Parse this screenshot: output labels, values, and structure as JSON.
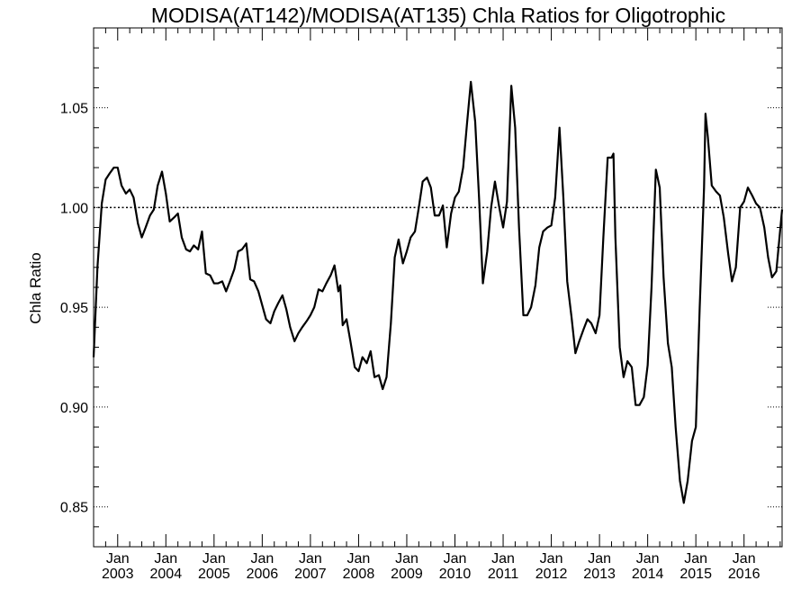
{
  "chart_data": {
    "type": "line",
    "title": "MODISA(AT142)/MODISA(AT135)  Chla Ratios for Oligotrophic",
    "xlabel": "",
    "ylabel": "Chla Ratio",
    "xlim": [
      2002.5,
      2016.79
    ],
    "ylim": [
      0.83,
      1.09
    ],
    "y_ticks": [
      0.85,
      0.9,
      0.95,
      1.0,
      1.05
    ],
    "y_tick_labels": [
      "0.85",
      "0.90",
      "0.95",
      "1.00",
      "1.05"
    ],
    "x_ticks": [
      {
        "x": 2003,
        "month": "Jan",
        "year": "2003"
      },
      {
        "x": 2004,
        "month": "Jan",
        "year": "2004"
      },
      {
        "x": 2005,
        "month": "Jan",
        "year": "2005"
      },
      {
        "x": 2006,
        "month": "Jan",
        "year": "2006"
      },
      {
        "x": 2007,
        "month": "Jan",
        "year": "2007"
      },
      {
        "x": 2008,
        "month": "Jan",
        "year": "2008"
      },
      {
        "x": 2009,
        "month": "Jan",
        "year": "2009"
      },
      {
        "x": 2010,
        "month": "Jan",
        "year": "2010"
      },
      {
        "x": 2011,
        "month": "Jan",
        "year": "2011"
      },
      {
        "x": 2012,
        "month": "Jan",
        "year": "2012"
      },
      {
        "x": 2013,
        "month": "Jan",
        "year": "2013"
      },
      {
        "x": 2014,
        "month": "Jan",
        "year": "2014"
      },
      {
        "x": 2015,
        "month": "Jan",
        "year": "2015"
      },
      {
        "x": 2016,
        "month": "Jan",
        "year": "2016"
      }
    ],
    "reference_line": 1.0,
    "grid": false,
    "series": [
      {
        "points": [
          [
            2002.5,
            0.925
          ],
          [
            2002.58,
            0.97
          ],
          [
            2002.67,
            1.002
          ],
          [
            2002.75,
            1.014
          ],
          [
            2002.83,
            1.017
          ],
          [
            2002.92,
            1.02
          ],
          [
            2003.0,
            1.02
          ],
          [
            2003.08,
            1.011
          ],
          [
            2003.17,
            1.007
          ],
          [
            2003.25,
            1.009
          ],
          [
            2003.33,
            1.005
          ],
          [
            2003.42,
            0.992
          ],
          [
            2003.5,
            0.985
          ],
          [
            2003.58,
            0.99
          ],
          [
            2003.67,
            0.996
          ],
          [
            2003.75,
            0.999
          ],
          [
            2003.83,
            1.011
          ],
          [
            2003.92,
            1.018
          ],
          [
            2004.0,
            1.007
          ],
          [
            2004.08,
            0.993
          ],
          [
            2004.17,
            0.995
          ],
          [
            2004.25,
            0.997
          ],
          [
            2004.33,
            0.985
          ],
          [
            2004.42,
            0.979
          ],
          [
            2004.5,
            0.978
          ],
          [
            2004.58,
            0.981
          ],
          [
            2004.67,
            0.979
          ],
          [
            2004.75,
            0.988
          ],
          [
            2004.83,
            0.967
          ],
          [
            2004.92,
            0.966
          ],
          [
            2005.0,
            0.962
          ],
          [
            2005.08,
            0.962
          ],
          [
            2005.17,
            0.963
          ],
          [
            2005.25,
            0.958
          ],
          [
            2005.33,
            0.963
          ],
          [
            2005.42,
            0.969
          ],
          [
            2005.5,
            0.978
          ],
          [
            2005.58,
            0.979
          ],
          [
            2005.67,
            0.982
          ],
          [
            2005.75,
            0.964
          ],
          [
            2005.83,
            0.963
          ],
          [
            2005.92,
            0.958
          ],
          [
            2006.0,
            0.951
          ],
          [
            2006.08,
            0.944
          ],
          [
            2006.17,
            0.942
          ],
          [
            2006.25,
            0.948
          ],
          [
            2006.33,
            0.952
          ],
          [
            2006.42,
            0.956
          ],
          [
            2006.5,
            0.949
          ],
          [
            2006.58,
            0.94
          ],
          [
            2006.67,
            0.933
          ],
          [
            2006.75,
            0.937
          ],
          [
            2006.83,
            0.94
          ],
          [
            2006.92,
            0.943
          ],
          [
            2007.0,
            0.946
          ],
          [
            2007.08,
            0.95
          ],
          [
            2007.17,
            0.959
          ],
          [
            2007.25,
            0.958
          ],
          [
            2007.33,
            0.962
          ],
          [
            2007.42,
            0.966
          ],
          [
            2007.5,
            0.971
          ],
          [
            2007.58,
            0.958
          ],
          [
            2007.62,
            0.961
          ],
          [
            2007.67,
            0.941
          ],
          [
            2007.75,
            0.944
          ],
          [
            2007.83,
            0.933
          ],
          [
            2007.92,
            0.92
          ],
          [
            2008.0,
            0.918
          ],
          [
            2008.08,
            0.925
          ],
          [
            2008.17,
            0.922
          ],
          [
            2008.25,
            0.928
          ],
          [
            2008.33,
            0.915
          ],
          [
            2008.42,
            0.916
          ],
          [
            2008.5,
            0.909
          ],
          [
            2008.58,
            0.915
          ],
          [
            2008.67,
            0.942
          ],
          [
            2008.75,
            0.975
          ],
          [
            2008.83,
            0.984
          ],
          [
            2008.92,
            0.972
          ],
          [
            2009.0,
            0.978
          ],
          [
            2009.08,
            0.985
          ],
          [
            2009.17,
            0.988
          ],
          [
            2009.25,
            1.0
          ],
          [
            2009.33,
            1.013
          ],
          [
            2009.42,
            1.015
          ],
          [
            2009.5,
            1.01
          ],
          [
            2009.58,
            0.996
          ],
          [
            2009.67,
            0.996
          ],
          [
            2009.75,
            1.001
          ],
          [
            2009.83,
            0.98
          ],
          [
            2009.92,
            0.997
          ],
          [
            2010.0,
            1.005
          ],
          [
            2010.08,
            1.008
          ],
          [
            2010.17,
            1.02
          ],
          [
            2010.25,
            1.042
          ],
          [
            2010.33,
            1.063
          ],
          [
            2010.42,
            1.043
          ],
          [
            2010.5,
            1.005
          ],
          [
            2010.58,
            0.962
          ],
          [
            2010.67,
            0.978
          ],
          [
            2010.75,
            1.0
          ],
          [
            2010.83,
            1.013
          ],
          [
            2010.92,
            1.0
          ],
          [
            2011.0,
            0.99
          ],
          [
            2011.08,
            1.003
          ],
          [
            2011.17,
            1.061
          ],
          [
            2011.25,
            1.04
          ],
          [
            2011.33,
            0.99
          ],
          [
            2011.42,
            0.946
          ],
          [
            2011.5,
            0.946
          ],
          [
            2011.58,
            0.95
          ],
          [
            2011.67,
            0.961
          ],
          [
            2011.75,
            0.98
          ],
          [
            2011.83,
            0.988
          ],
          [
            2011.92,
            0.99
          ],
          [
            2012.0,
            0.991
          ],
          [
            2012.08,
            1.005
          ],
          [
            2012.17,
            1.04
          ],
          [
            2012.25,
            1.005
          ],
          [
            2012.33,
            0.963
          ],
          [
            2012.42,
            0.945
          ],
          [
            2012.5,
            0.927
          ],
          [
            2012.58,
            0.933
          ],
          [
            2012.67,
            0.939
          ],
          [
            2012.75,
            0.944
          ],
          [
            2012.83,
            0.942
          ],
          [
            2012.92,
            0.937
          ],
          [
            2013.0,
            0.946
          ],
          [
            2013.08,
            0.985
          ],
          [
            2013.17,
            1.025
          ],
          [
            2013.25,
            1.025
          ],
          [
            2013.29,
            1.027
          ],
          [
            2013.33,
            0.985
          ],
          [
            2013.42,
            0.93
          ],
          [
            2013.5,
            0.915
          ],
          [
            2013.58,
            0.923
          ],
          [
            2013.67,
            0.92
          ],
          [
            2013.75,
            0.901
          ],
          [
            2013.83,
            0.901
          ],
          [
            2013.92,
            0.905
          ],
          [
            2014.0,
            0.921
          ],
          [
            2014.08,
            0.96
          ],
          [
            2014.17,
            1.019
          ],
          [
            2014.25,
            1.01
          ],
          [
            2014.33,
            0.965
          ],
          [
            2014.42,
            0.932
          ],
          [
            2014.5,
            0.92
          ],
          [
            2014.58,
            0.89
          ],
          [
            2014.67,
            0.863
          ],
          [
            2014.75,
            0.852
          ],
          [
            2014.83,
            0.863
          ],
          [
            2014.92,
            0.883
          ],
          [
            2015.0,
            0.89
          ],
          [
            2015.08,
            0.95
          ],
          [
            2015.17,
            1.01
          ],
          [
            2015.2,
            1.047
          ],
          [
            2015.25,
            1.035
          ],
          [
            2015.33,
            1.011
          ],
          [
            2015.42,
            1.008
          ],
          [
            2015.5,
            1.006
          ],
          [
            2015.58,
            0.995
          ],
          [
            2015.67,
            0.977
          ],
          [
            2015.75,
            0.963
          ],
          [
            2015.83,
            0.97
          ],
          [
            2015.92,
            1.0
          ],
          [
            2016.0,
            1.003
          ],
          [
            2016.08,
            1.01
          ],
          [
            2016.17,
            1.006
          ],
          [
            2016.25,
            1.002
          ],
          [
            2016.33,
            1.0
          ],
          [
            2016.42,
            0.99
          ],
          [
            2016.5,
            0.975
          ],
          [
            2016.58,
            0.965
          ],
          [
            2016.67,
            0.968
          ],
          [
            2016.79,
            0.999
          ]
        ]
      }
    ]
  }
}
